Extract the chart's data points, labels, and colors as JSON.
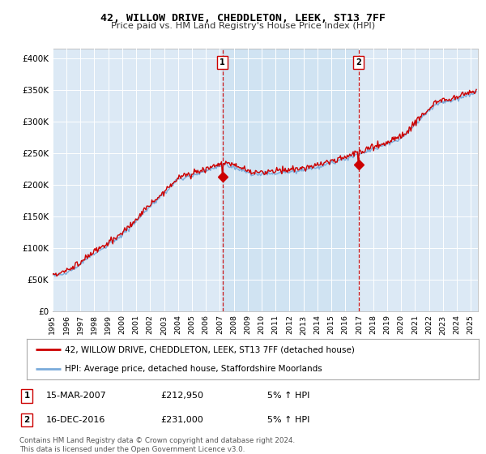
{
  "title": "42, WILLOW DRIVE, CHEDDLETON, LEEK, ST13 7FF",
  "subtitle": "Price paid vs. HM Land Registry's House Price Index (HPI)",
  "ylabel_ticks": [
    "£0",
    "£50K",
    "£100K",
    "£150K",
    "£200K",
    "£250K",
    "£300K",
    "£350K",
    "£400K"
  ],
  "ytick_values": [
    0,
    50000,
    100000,
    150000,
    200000,
    250000,
    300000,
    350000,
    400000
  ],
  "ylim": [
    0,
    415000
  ],
  "xlim_start": 1995.0,
  "xlim_end": 2025.5,
  "background_color": "#dce9f5",
  "shade_color": "#cce0f0",
  "outer_bg_color": "#ffffff",
  "red_line_color": "#cc0000",
  "blue_line_color": "#7aabdb",
  "marker1_x": 2007.2,
  "marker1_y": 212950,
  "marker2_x": 2016.95,
  "marker2_y": 231000,
  "legend_entry1": "42, WILLOW DRIVE, CHEDDLETON, LEEK, ST13 7FF (detached house)",
  "legend_entry2": "HPI: Average price, detached house, Staffordshire Moorlands",
  "note1_num": "1",
  "note1_date": "15-MAR-2007",
  "note1_price": "£212,950",
  "note1_hpi": "5% ↑ HPI",
  "note2_num": "2",
  "note2_date": "16-DEC-2016",
  "note2_price": "£231,000",
  "note2_hpi": "5% ↑ HPI",
  "footer": "Contains HM Land Registry data © Crown copyright and database right 2024.\nThis data is licensed under the Open Government Licence v3.0.",
  "xtick_years": [
    1995,
    1996,
    1997,
    1998,
    1999,
    2000,
    2001,
    2002,
    2003,
    2004,
    2005,
    2006,
    2007,
    2008,
    2009,
    2010,
    2011,
    2012,
    2013,
    2014,
    2015,
    2016,
    2017,
    2018,
    2019,
    2020,
    2021,
    2022,
    2023,
    2024,
    2025
  ]
}
